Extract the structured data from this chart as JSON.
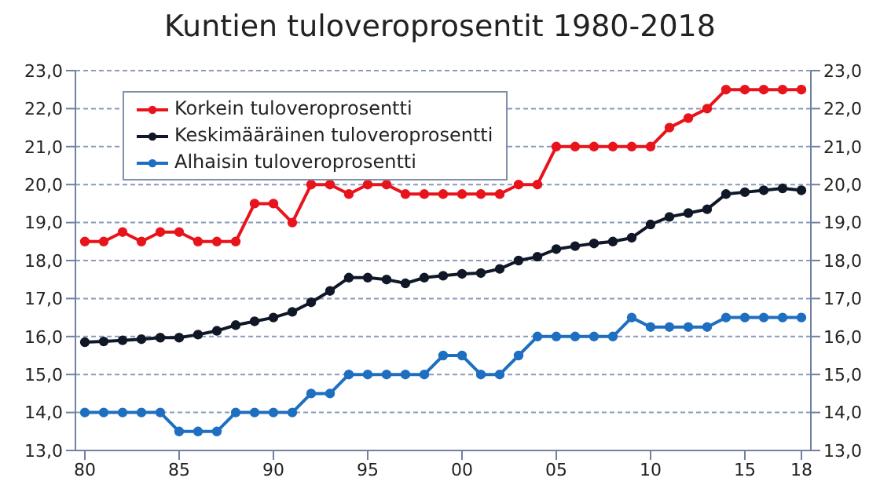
{
  "chart_data": {
    "type": "line",
    "title": "Kuntien tuloveroprosentit 1980-2018",
    "x": [
      1980,
      1981,
      1982,
      1983,
      1984,
      1985,
      1986,
      1987,
      1988,
      1989,
      1990,
      1991,
      1992,
      1993,
      1994,
      1995,
      1996,
      1997,
      1998,
      1999,
      2000,
      2001,
      2002,
      2003,
      2004,
      2005,
      2006,
      2007,
      2008,
      2009,
      2010,
      2011,
      2012,
      2013,
      2014,
      2015,
      2016,
      2017,
      2018
    ],
    "series": [
      {
        "name": "Korkein tuloveroprosentti",
        "color": "#e8141c",
        "values": [
          18.5,
          18.5,
          18.75,
          18.5,
          18.75,
          18.75,
          18.5,
          18.5,
          18.5,
          19.5,
          19.5,
          19.0,
          20.0,
          20.0,
          19.75,
          20.0,
          20.0,
          19.75,
          19.75,
          19.75,
          19.75,
          19.75,
          19.75,
          20.0,
          20.0,
          21.0,
          21.0,
          21.0,
          21.0,
          21.0,
          21.0,
          21.5,
          21.75,
          22.0,
          22.5,
          22.5,
          22.5,
          22.5,
          22.5
        ]
      },
      {
        "name": "Keskimääräinen tuloveroprosentti",
        "color": "#101828",
        "values": [
          15.85,
          15.87,
          15.9,
          15.93,
          15.97,
          15.97,
          16.05,
          16.15,
          16.3,
          16.4,
          16.5,
          16.65,
          16.9,
          17.2,
          17.55,
          17.55,
          17.5,
          17.4,
          17.55,
          17.6,
          17.65,
          17.67,
          17.78,
          18.0,
          18.1,
          18.3,
          18.38,
          18.45,
          18.5,
          18.6,
          18.95,
          19.15,
          19.25,
          19.35,
          19.75,
          19.8,
          19.85,
          19.9,
          19.85
        ]
      },
      {
        "name": "Alhaisin tuloveroprosentti",
        "color": "#1f6fc0",
        "values": [
          14.0,
          14.0,
          14.0,
          14.0,
          14.0,
          13.5,
          13.5,
          13.5,
          14.0,
          14.0,
          14.0,
          14.0,
          14.5,
          14.5,
          15.0,
          15.0,
          15.0,
          15.0,
          15.0,
          15.5,
          15.5,
          15.0,
          15.0,
          15.5,
          16.0,
          16.0,
          16.0,
          16.0,
          16.0,
          16.5,
          16.25,
          16.25,
          16.25,
          16.25,
          16.5,
          16.5,
          16.5,
          16.5,
          16.5
        ]
      }
    ],
    "xlim": [
      1979.5,
      2018.5
    ],
    "xticks": [
      {
        "value": 1980,
        "label": "80"
      },
      {
        "value": 1985,
        "label": "85"
      },
      {
        "value": 1990,
        "label": "90"
      },
      {
        "value": 1995,
        "label": "95"
      },
      {
        "value": 2000,
        "label": "00"
      },
      {
        "value": 2005,
        "label": "05"
      },
      {
        "value": 2010,
        "label": "10"
      },
      {
        "value": 2015,
        "label": "15"
      },
      {
        "value": 2018,
        "label": "18"
      }
    ],
    "ylim": [
      13,
      23
    ],
    "yticks": [
      {
        "value": 13,
        "label": "13,0"
      },
      {
        "value": 14,
        "label": "14,0"
      },
      {
        "value": 15,
        "label": "15,0"
      },
      {
        "value": 16,
        "label": "16,0"
      },
      {
        "value": 17,
        "label": "17,0"
      },
      {
        "value": 18,
        "label": "18,0"
      },
      {
        "value": 19,
        "label": "19,0"
      },
      {
        "value": 20,
        "label": "20,0"
      },
      {
        "value": 21,
        "label": "21,0"
      },
      {
        "value": 22,
        "label": "22,0"
      },
      {
        "value": 23,
        "label": "23,0"
      }
    ],
    "y2lim": [
      13,
      23
    ],
    "y2ticks": [
      {
        "value": 13,
        "label": "13,0"
      },
      {
        "value": 14,
        "label": "14,0"
      },
      {
        "value": 15,
        "label": "15,0"
      },
      {
        "value": 16,
        "label": "16,0"
      },
      {
        "value": 17,
        "label": "17,0"
      },
      {
        "value": 18,
        "label": "18,0"
      },
      {
        "value": 19,
        "label": "19,0"
      },
      {
        "value": 20,
        "label": "20,0"
      },
      {
        "value": 21,
        "label": "21,0"
      },
      {
        "value": 22,
        "label": "22,0"
      },
      {
        "value": 23,
        "label": "23,0"
      }
    ],
    "grid": "y",
    "legend": "top left",
    "marker": "circle",
    "line_style": "solid"
  }
}
